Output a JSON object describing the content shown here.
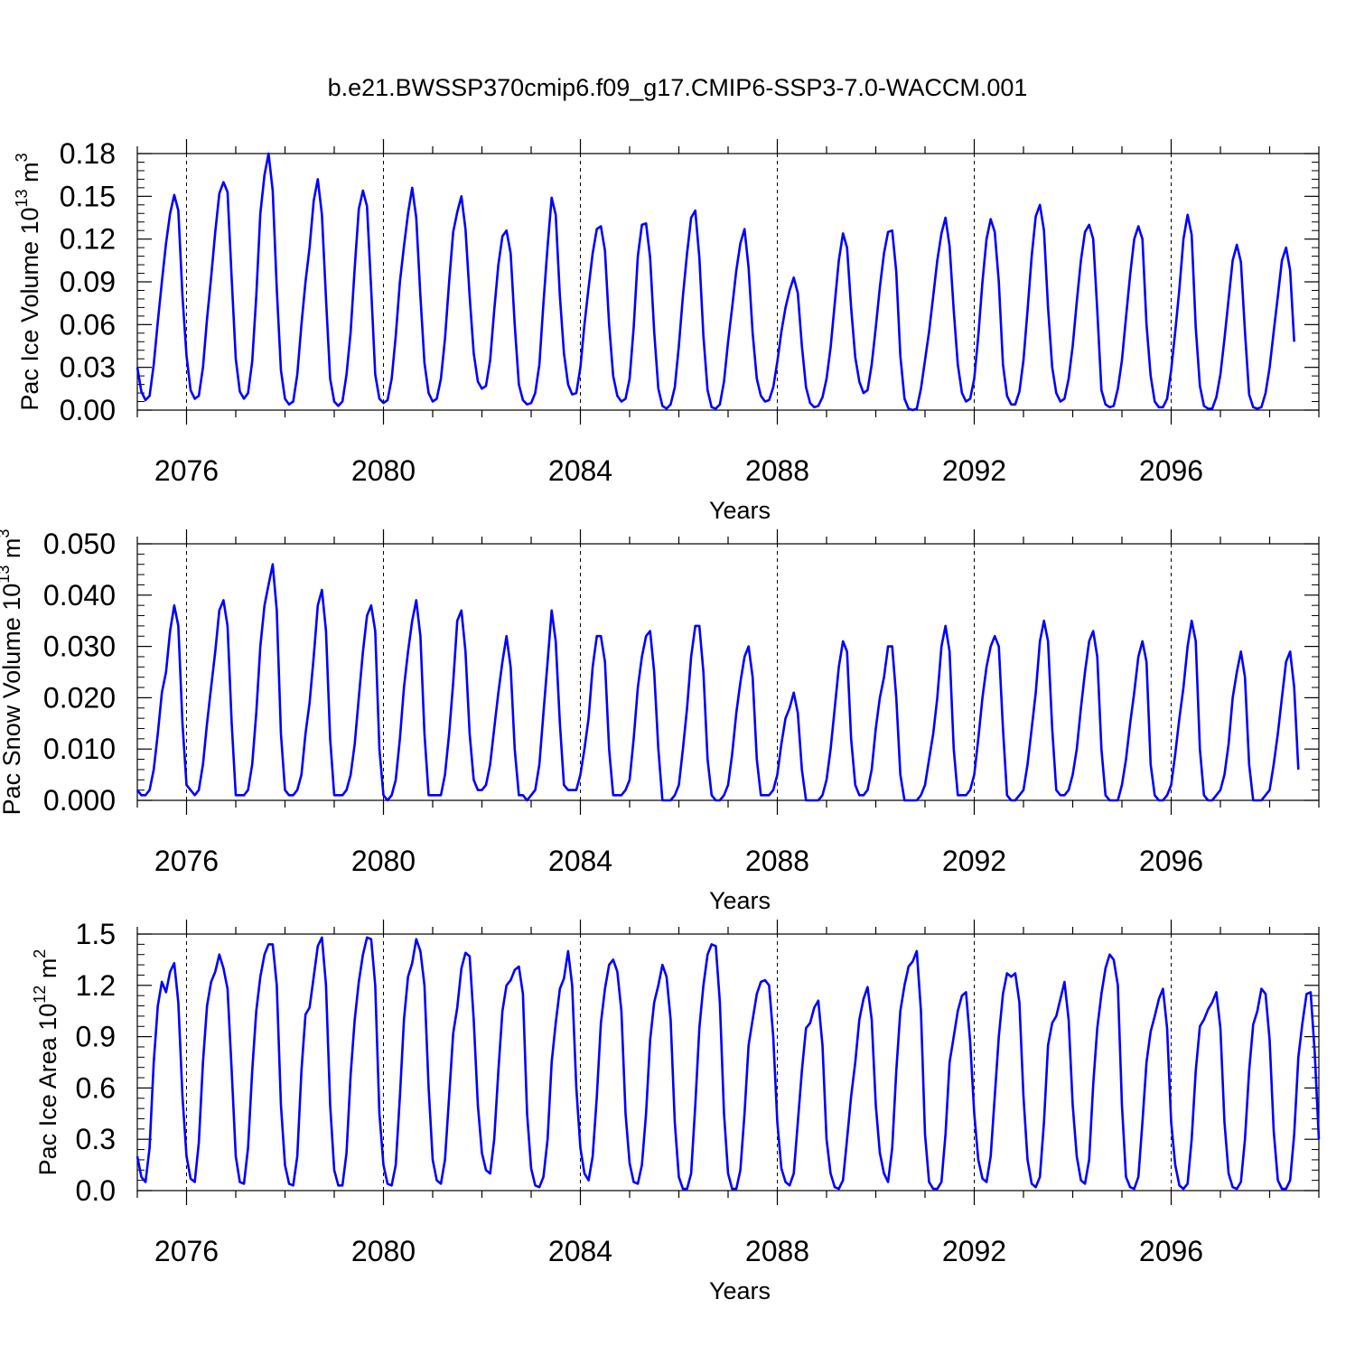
{
  "title": "b.e21.BWSSP370cmip6.f09_g17.CMIP6-SSP3-7.0-WACCM.001",
  "line_color": "#0000ff",
  "chart_data": [
    {
      "type": "line",
      "ylabel": {
        "main": "Pac Ice Volume 10",
        "exp": "13",
        "unit": " m",
        "unit_exp": "3"
      },
      "xlabel": "Years",
      "xlim": [
        2075.0,
        2099.0
      ],
      "x_ticks": [
        "2076",
        "2080",
        "2084",
        "2088",
        "2092",
        "2096"
      ],
      "ylim": [
        0,
        0.18
      ],
      "y_ticks": [
        "0.00",
        "0.03",
        "0.06",
        "0.09",
        "0.12",
        "0.15",
        "0.18"
      ],
      "dashed_gridlines": [
        "2076",
        "2080",
        "2084",
        "2088",
        "2092",
        "2096"
      ],
      "series": [
        {
          "x_start": 2075.0,
          "x_step": 0.083333,
          "values": [
            0.03,
            0.013,
            0.007,
            0.01,
            0.032,
            0.062,
            0.09,
            0.117,
            0.138,
            0.151,
            0.14,
            0.08,
            0.038,
            0.014,
            0.008,
            0.01,
            0.03,
            0.064,
            0.093,
            0.125,
            0.152,
            0.16,
            0.153,
            0.092,
            0.036,
            0.013,
            0.008,
            0.012,
            0.034,
            0.08,
            0.138,
            0.165,
            0.18,
            0.154,
            0.085,
            0.028,
            0.008,
            0.004,
            0.006,
            0.025,
            0.06,
            0.09,
            0.114,
            0.147,
            0.162,
            0.137,
            0.078,
            0.022,
            0.006,
            0.003,
            0.006,
            0.025,
            0.055,
            0.1,
            0.141,
            0.154,
            0.143,
            0.085,
            0.025,
            0.008,
            0.005,
            0.007,
            0.022,
            0.052,
            0.09,
            0.115,
            0.138,
            0.156,
            0.135,
            0.08,
            0.033,
            0.012,
            0.006,
            0.008,
            0.022,
            0.05,
            0.09,
            0.125,
            0.139,
            0.15,
            0.127,
            0.08,
            0.04,
            0.02,
            0.015,
            0.017,
            0.035,
            0.07,
            0.102,
            0.122,
            0.126,
            0.11,
            0.06,
            0.018,
            0.007,
            0.004,
            0.005,
            0.012,
            0.032,
            0.075,
            0.115,
            0.149,
            0.137,
            0.08,
            0.04,
            0.018,
            0.011,
            0.012,
            0.03,
            0.06,
            0.086,
            0.11,
            0.127,
            0.129,
            0.112,
            0.06,
            0.024,
            0.01,
            0.006,
            0.008,
            0.022,
            0.058,
            0.108,
            0.13,
            0.131,
            0.107,
            0.055,
            0.015,
            0.003,
            0.001,
            0.004,
            0.016,
            0.045,
            0.08,
            0.11,
            0.135,
            0.14,
            0.107,
            0.052,
            0.014,
            0.002,
            0.001,
            0.004,
            0.02,
            0.048,
            0.072,
            0.098,
            0.117,
            0.127,
            0.1,
            0.054,
            0.022,
            0.01,
            0.006,
            0.007,
            0.016,
            0.034,
            0.055,
            0.072,
            0.084,
            0.093,
            0.082,
            0.045,
            0.016,
            0.005,
            0.002,
            0.003,
            0.009,
            0.022,
            0.044,
            0.075,
            0.105,
            0.124,
            0.114,
            0.072,
            0.037,
            0.02,
            0.012,
            0.014,
            0.032,
            0.058,
            0.086,
            0.11,
            0.125,
            0.126,
            0.097,
            0.038,
            0.008,
            0.001,
            0.0,
            0.001,
            0.015,
            0.035,
            0.055,
            0.08,
            0.105,
            0.124,
            0.135,
            0.115,
            0.07,
            0.032,
            0.012,
            0.006,
            0.008,
            0.022,
            0.052,
            0.09,
            0.12,
            0.134,
            0.125,
            0.09,
            0.032,
            0.01,
            0.004,
            0.004,
            0.013,
            0.035,
            0.07,
            0.108,
            0.136,
            0.144,
            0.126,
            0.072,
            0.03,
            0.012,
            0.006,
            0.008,
            0.022,
            0.045,
            0.076,
            0.105,
            0.125,
            0.13,
            0.12,
            0.07,
            0.014,
            0.004,
            0.002,
            0.003,
            0.015,
            0.035,
            0.065,
            0.095,
            0.12,
            0.129,
            0.12,
            0.06,
            0.024,
            0.006,
            0.002,
            0.002,
            0.008,
            0.028,
            0.055,
            0.085,
            0.12,
            0.137,
            0.123,
            0.058,
            0.017,
            0.003,
            0.001,
            0.001,
            0.009,
            0.025,
            0.05,
            0.078,
            0.105,
            0.116,
            0.104,
            0.055,
            0.011,
            0.002,
            0.001,
            0.002,
            0.012,
            0.03,
            0.055,
            0.08,
            0.105,
            0.114,
            0.098,
            0.048
          ]
        }
      ]
    },
    {
      "type": "line",
      "ylabel": {
        "main": "Pac Snow Volume 10",
        "exp": "13",
        "unit": " m",
        "unit_exp": "3"
      },
      "xlabel": "Years",
      "xlim": [
        2075.0,
        2099.0
      ],
      "x_ticks": [
        "2076",
        "2080",
        "2084",
        "2088",
        "2092",
        "2096"
      ],
      "ylim": [
        0,
        0.05
      ],
      "y_ticks": [
        "0.000",
        "0.010",
        "0.020",
        "0.030",
        "0.040",
        "0.050"
      ],
      "dashed_gridlines": [
        "2076",
        "2080",
        "2084",
        "2088",
        "2092",
        "2096"
      ],
      "series": [
        {
          "x_start": 2075.0,
          "x_step": 0.083333,
          "values": [
            0.002,
            0.001,
            0.001,
            0.002,
            0.006,
            0.013,
            0.021,
            0.025,
            0.033,
            0.038,
            0.034,
            0.015,
            0.003,
            0.002,
            0.001,
            0.002,
            0.007,
            0.015,
            0.022,
            0.029,
            0.037,
            0.039,
            0.034,
            0.015,
            0.001,
            0.001,
            0.001,
            0.002,
            0.007,
            0.017,
            0.03,
            0.038,
            0.042,
            0.046,
            0.037,
            0.013,
            0.002,
            0.001,
            0.001,
            0.002,
            0.005,
            0.013,
            0.019,
            0.028,
            0.038,
            0.041,
            0.033,
            0.012,
            0.001,
            0.001,
            0.001,
            0.002,
            0.005,
            0.011,
            0.02,
            0.029,
            0.036,
            0.038,
            0.033,
            0.01,
            0.001,
            0.0,
            0.001,
            0.004,
            0.012,
            0.022,
            0.029,
            0.035,
            0.039,
            0.032,
            0.013,
            0.001,
            0.001,
            0.001,
            0.001,
            0.005,
            0.013,
            0.023,
            0.035,
            0.037,
            0.029,
            0.013,
            0.004,
            0.002,
            0.002,
            0.003,
            0.007,
            0.014,
            0.021,
            0.027,
            0.032,
            0.026,
            0.01,
            0.001,
            0.001,
            0.0,
            0.001,
            0.002,
            0.007,
            0.017,
            0.027,
            0.037,
            0.031,
            0.015,
            0.003,
            0.002,
            0.002,
            0.002,
            0.005,
            0.01,
            0.016,
            0.026,
            0.032,
            0.032,
            0.027,
            0.01,
            0.001,
            0.001,
            0.001,
            0.002,
            0.004,
            0.012,
            0.022,
            0.028,
            0.032,
            0.033,
            0.025,
            0.01,
            0.0,
            0.0,
            0.0,
            0.001,
            0.003,
            0.01,
            0.018,
            0.028,
            0.034,
            0.034,
            0.025,
            0.008,
            0.001,
            0.0,
            0.0,
            0.001,
            0.003,
            0.009,
            0.017,
            0.023,
            0.028,
            0.03,
            0.024,
            0.008,
            0.001,
            0.001,
            0.001,
            0.002,
            0.005,
            0.011,
            0.016,
            0.018,
            0.021,
            0.017,
            0.006,
            0.0,
            0.0,
            0.0,
            0.0,
            0.001,
            0.004,
            0.01,
            0.018,
            0.026,
            0.031,
            0.029,
            0.012,
            0.003,
            0.001,
            0.001,
            0.002,
            0.006,
            0.014,
            0.02,
            0.024,
            0.03,
            0.03,
            0.02,
            0.005,
            0.0,
            0.0,
            0.0,
            0.0,
            0.001,
            0.003,
            0.008,
            0.013,
            0.02,
            0.03,
            0.034,
            0.029,
            0.01,
            0.001,
            0.001,
            0.001,
            0.002,
            0.005,
            0.012,
            0.02,
            0.026,
            0.03,
            0.032,
            0.03,
            0.014,
            0.001,
            0.0,
            0.0,
            0.001,
            0.002,
            0.007,
            0.014,
            0.021,
            0.031,
            0.035,
            0.031,
            0.014,
            0.002,
            0.001,
            0.001,
            0.002,
            0.005,
            0.01,
            0.018,
            0.025,
            0.031,
            0.033,
            0.028,
            0.01,
            0.001,
            0.0,
            0.0,
            0.0,
            0.003,
            0.008,
            0.015,
            0.021,
            0.028,
            0.031,
            0.027,
            0.007,
            0.001,
            0.0,
            0.0,
            0.001,
            0.003,
            0.009,
            0.016,
            0.022,
            0.03,
            0.035,
            0.031,
            0.01,
            0.001,
            0.0,
            0.0,
            0.001,
            0.002,
            0.005,
            0.011,
            0.02,
            0.025,
            0.029,
            0.024,
            0.007,
            0.0,
            0.0,
            0.0,
            0.001,
            0.002,
            0.007,
            0.013,
            0.02,
            0.027,
            0.029,
            0.022,
            0.006
          ]
        }
      ]
    },
    {
      "type": "line",
      "ylabel": {
        "main": "Pac Ice Area 10",
        "exp": "12",
        "unit": " m",
        "unit_exp": "2"
      },
      "xlabel": "Years",
      "xlim": [
        2075.0,
        2099.0
      ],
      "x_ticks": [
        "2076",
        "2080",
        "2084",
        "2088",
        "2092",
        "2096"
      ],
      "ylim": [
        0,
        1.5
      ],
      "y_ticks": [
        "0.0",
        "0.3",
        "0.6",
        "0.9",
        "1.2",
        "1.5"
      ],
      "dashed_gridlines": [
        "2076",
        "2080",
        "2084",
        "2088",
        "2092",
        "2096"
      ],
      "series": [
        {
          "x_start": 2075.0,
          "x_step": 0.083333,
          "values": [
            0.2,
            0.08,
            0.05,
            0.25,
            0.75,
            1.08,
            1.22,
            1.16,
            1.28,
            1.33,
            1.1,
            0.55,
            0.2,
            0.07,
            0.05,
            0.28,
            0.75,
            1.08,
            1.22,
            1.28,
            1.38,
            1.3,
            1.18,
            0.7,
            0.2,
            0.05,
            0.04,
            0.25,
            0.7,
            1.05,
            1.25,
            1.38,
            1.44,
            1.44,
            1.2,
            0.5,
            0.15,
            0.04,
            0.03,
            0.2,
            0.7,
            1.03,
            1.07,
            1.25,
            1.43,
            1.48,
            1.2,
            0.5,
            0.12,
            0.03,
            0.03,
            0.22,
            0.68,
            1.0,
            1.22,
            1.38,
            1.48,
            1.47,
            1.2,
            0.45,
            0.15,
            0.04,
            0.03,
            0.15,
            0.55,
            1.0,
            1.25,
            1.33,
            1.47,
            1.4,
            1.2,
            0.6,
            0.18,
            0.06,
            0.04,
            0.18,
            0.55,
            0.92,
            1.07,
            1.3,
            1.39,
            1.37,
            1.0,
            0.5,
            0.22,
            0.12,
            0.1,
            0.3,
            0.7,
            1.05,
            1.2,
            1.23,
            1.29,
            1.31,
            1.15,
            0.45,
            0.13,
            0.03,
            0.02,
            0.08,
            0.3,
            0.75,
            0.98,
            1.18,
            1.24,
            1.4,
            1.2,
            0.6,
            0.25,
            0.1,
            0.06,
            0.2,
            0.55,
            0.98,
            1.18,
            1.32,
            1.35,
            1.28,
            1.05,
            0.45,
            0.16,
            0.05,
            0.04,
            0.15,
            0.45,
            0.88,
            1.1,
            1.2,
            1.32,
            1.25,
            1.0,
            0.4,
            0.08,
            0.01,
            0.01,
            0.1,
            0.5,
            0.95,
            1.2,
            1.38,
            1.44,
            1.43,
            1.1,
            0.45,
            0.1,
            0.01,
            0.01,
            0.12,
            0.45,
            0.85,
            1.0,
            1.15,
            1.22,
            1.23,
            1.2,
            0.9,
            0.4,
            0.13,
            0.05,
            0.03,
            0.1,
            0.4,
            0.7,
            0.95,
            0.98,
            1.07,
            1.11,
            0.85,
            0.3,
            0.1,
            0.02,
            0.01,
            0.06,
            0.3,
            0.55,
            0.75,
            1.0,
            1.12,
            1.19,
            1.0,
            0.5,
            0.22,
            0.1,
            0.05,
            0.25,
            0.7,
            1.05,
            1.2,
            1.31,
            1.34,
            1.4,
            1.05,
            0.33,
            0.05,
            0.01,
            0.01,
            0.05,
            0.33,
            0.75,
            0.9,
            1.05,
            1.14,
            1.16,
            0.87,
            0.45,
            0.18,
            0.07,
            0.05,
            0.2,
            0.55,
            0.9,
            1.15,
            1.27,
            1.25,
            1.27,
            1.1,
            0.55,
            0.18,
            0.04,
            0.02,
            0.08,
            0.4,
            0.85,
            0.98,
            1.02,
            1.12,
            1.22,
            1.0,
            0.5,
            0.2,
            0.06,
            0.04,
            0.18,
            0.62,
            0.95,
            1.15,
            1.3,
            1.38,
            1.35,
            1.2,
            0.5,
            0.08,
            0.02,
            0.01,
            0.08,
            0.4,
            0.75,
            0.93,
            1.02,
            1.12,
            1.18,
            0.95,
            0.4,
            0.15,
            0.03,
            0.01,
            0.04,
            0.3,
            0.7,
            0.96,
            1.0,
            1.06,
            1.1,
            1.16,
            0.95,
            0.4,
            0.1,
            0.02,
            0.01,
            0.05,
            0.3,
            0.7,
            0.97,
            1.05,
            1.18,
            1.15,
            0.88,
            0.35,
            0.06,
            0.01,
            0.01,
            0.06,
            0.33,
            0.78,
            0.98,
            1.15,
            1.16,
            0.8,
            0.3
          ]
        }
      ]
    }
  ]
}
